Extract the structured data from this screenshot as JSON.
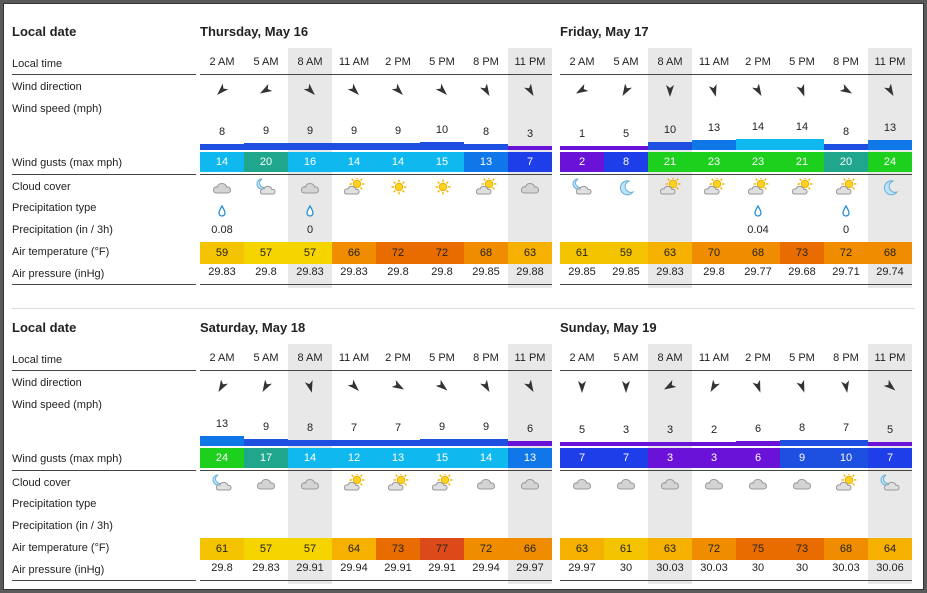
{
  "labels": {
    "local_date": "Local date",
    "local_time": "Local time",
    "wind_direction": "Wind direction",
    "wind_speed": "Wind speed  (mph)",
    "wind_gusts": "Wind gusts  (max mph)",
    "cloud_cover": "Cloud cover",
    "precip_type": "Precipitation type",
    "precip": "Precipitation  (in / 3h)",
    "air_temp": "Air temperature  (°F)",
    "air_pressure": "Air pressure  (inHg)"
  },
  "times": [
    "2 AM",
    "5 AM",
    "8 AM",
    "11 AM",
    "2 PM",
    "5 PM",
    "8 PM",
    "11 PM"
  ],
  "days": [
    {
      "title": "Thursday, May 16",
      "wind_dir_deg": [
        225,
        240,
        135,
        135,
        135,
        135,
        150,
        150
      ],
      "wind_speed": [
        8,
        9,
        9,
        9,
        9,
        10,
        8,
        3
      ],
      "wind_colors": [
        "#1d4fe0",
        "#1d4fe0",
        "#1d4fe0",
        "#1d4fe0",
        "#1d4fe0",
        "#1d4fe0",
        "#1d4fe0",
        "#6a12d8"
      ],
      "gusts": [
        14,
        20,
        16,
        14,
        14,
        15,
        13,
        7
      ],
      "gust_colors": [
        "#10b8f0",
        "#1fa68c",
        "#10b8f0",
        "#10b8f0",
        "#10b8f0",
        "#10b8f0",
        "#1077e8",
        "#1d3ee8"
      ],
      "cloud": [
        "cloud",
        "cloud-moon",
        "cloud",
        "sun-cloud",
        "sun",
        "sun",
        "sun-cloud",
        "cloud"
      ],
      "precip_type": [
        "rain",
        "",
        "rain",
        "",
        "",
        "",
        "",
        ""
      ],
      "precip": [
        "0.08",
        "",
        "0",
        "",
        "",
        "",
        "",
        ""
      ],
      "temp": [
        59,
        57,
        57,
        66,
        72,
        72,
        68,
        63
      ],
      "temp_colors": [
        "#f5c400",
        "#f5d400",
        "#f5d400",
        "#f08c00",
        "#e86c00",
        "#e86c00",
        "#f08c00",
        "#f5b000"
      ],
      "pressure": [
        "29.83",
        "29.8",
        "29.83",
        "29.83",
        "29.8",
        "29.8",
        "29.85",
        "29.88"
      ]
    },
    {
      "title": "Friday, May 17",
      "wind_dir_deg": [
        240,
        210,
        180,
        165,
        150,
        160,
        120,
        150
      ],
      "wind_speed": [
        1,
        5,
        10,
        13,
        14,
        14,
        8,
        13
      ],
      "wind_colors": [
        "#6a12d8",
        "#6a12d8",
        "#1d4fe0",
        "#1077e8",
        "#10b8f0",
        "#10b8f0",
        "#1d4fe0",
        "#1077e8"
      ],
      "gusts": [
        2,
        8,
        21,
        23,
        23,
        21,
        20,
        24
      ],
      "gust_colors": [
        "#6a12d8",
        "#1d3ee8",
        "#1ed01e",
        "#1ed01e",
        "#1ed01e",
        "#1ed01e",
        "#1fa68c",
        "#1ed01e"
      ],
      "cloud": [
        "cloud-moon",
        "moon",
        "sun-cloud",
        "sun-cloud",
        "sun-cloud",
        "sun-cloud",
        "sun-cloud",
        "moon"
      ],
      "precip_type": [
        "",
        "",
        "",
        "",
        "rain",
        "",
        "rain",
        ""
      ],
      "precip": [
        "",
        "",
        "",
        "",
        "0.04",
        "",
        "0",
        ""
      ],
      "temp": [
        61,
        59,
        63,
        70,
        68,
        73,
        72,
        68
      ],
      "temp_colors": [
        "#f5c400",
        "#f5c400",
        "#f5b000",
        "#f08c00",
        "#f08c00",
        "#e86c00",
        "#f08c00",
        "#f08c00"
      ],
      "pressure": [
        "29.85",
        "29.85",
        "29.83",
        "29.8",
        "29.77",
        "29.68",
        "29.71",
        "29.74"
      ]
    },
    {
      "title": "Saturday, May 18",
      "wind_dir_deg": [
        210,
        210,
        165,
        135,
        120,
        130,
        150,
        150
      ],
      "wind_speed": [
        13,
        9,
        8,
        7,
        7,
        9,
        9,
        6
      ],
      "wind_colors": [
        "#1077e8",
        "#1d4fe0",
        "#1d4fe0",
        "#1d4fe0",
        "#1d4fe0",
        "#1d4fe0",
        "#1d4fe0",
        "#6a12d8"
      ],
      "gusts": [
        24,
        17,
        14,
        12,
        13,
        15,
        14,
        13
      ],
      "gust_colors": [
        "#1ed01e",
        "#1fa68c",
        "#10b8f0",
        "#10b8f0",
        "#10b8f0",
        "#10b8f0",
        "#10b8f0",
        "#1077e8"
      ],
      "cloud": [
        "cloud-moon",
        "cloud",
        "cloud",
        "sun-cloud",
        "sun-cloud",
        "sun-cloud",
        "cloud",
        "cloud"
      ],
      "precip_type": [
        "",
        "",
        "",
        "",
        "",
        "",
        "",
        ""
      ],
      "precip": [
        "",
        "",
        "",
        "",
        "",
        "",
        "",
        ""
      ],
      "temp": [
        61,
        57,
        57,
        64,
        73,
        77,
        72,
        66
      ],
      "temp_colors": [
        "#f5c400",
        "#f5d400",
        "#f5d400",
        "#f5b000",
        "#e86c00",
        "#dd4a1a",
        "#f08c00",
        "#f08c00"
      ],
      "pressure": [
        "29.8",
        "29.83",
        "29.91",
        "29.94",
        "29.91",
        "29.91",
        "29.94",
        "29.97"
      ]
    },
    {
      "title": "Sunday, May 19",
      "wind_dir_deg": [
        180,
        180,
        240,
        210,
        160,
        160,
        170,
        130
      ],
      "wind_speed": [
        5,
        3,
        3,
        2,
        6,
        8,
        7,
        5
      ],
      "wind_colors": [
        "#6a12d8",
        "#6a12d8",
        "#6a12d8",
        "#6a12d8",
        "#6a12d8",
        "#1d4fe0",
        "#1d4fe0",
        "#6a12d8"
      ],
      "gusts": [
        7,
        7,
        3,
        3,
        6,
        9,
        10,
        7
      ],
      "gust_colors": [
        "#1d3ee8",
        "#1d3ee8",
        "#6a12d8",
        "#6a12d8",
        "#6a12d8",
        "#1d4fe0",
        "#1d4fe0",
        "#1d3ee8"
      ],
      "cloud": [
        "cloud",
        "cloud",
        "cloud",
        "cloud",
        "cloud",
        "cloud",
        "sun-cloud",
        "cloud-moon"
      ],
      "precip_type": [
        "",
        "",
        "",
        "",
        "",
        "",
        "",
        ""
      ],
      "precip": [
        "",
        "",
        "",
        "",
        "",
        "",
        "",
        ""
      ],
      "temp": [
        63,
        61,
        63,
        72,
        75,
        73,
        68,
        64
      ],
      "temp_colors": [
        "#f5b000",
        "#f5c400",
        "#f5b000",
        "#f08c00",
        "#e86c00",
        "#e86c00",
        "#f08c00",
        "#f5b000"
      ],
      "pressure": [
        "29.97",
        "30",
        "30.03",
        "30.03",
        "30",
        "30",
        "30.03",
        "30.06"
      ]
    }
  ]
}
